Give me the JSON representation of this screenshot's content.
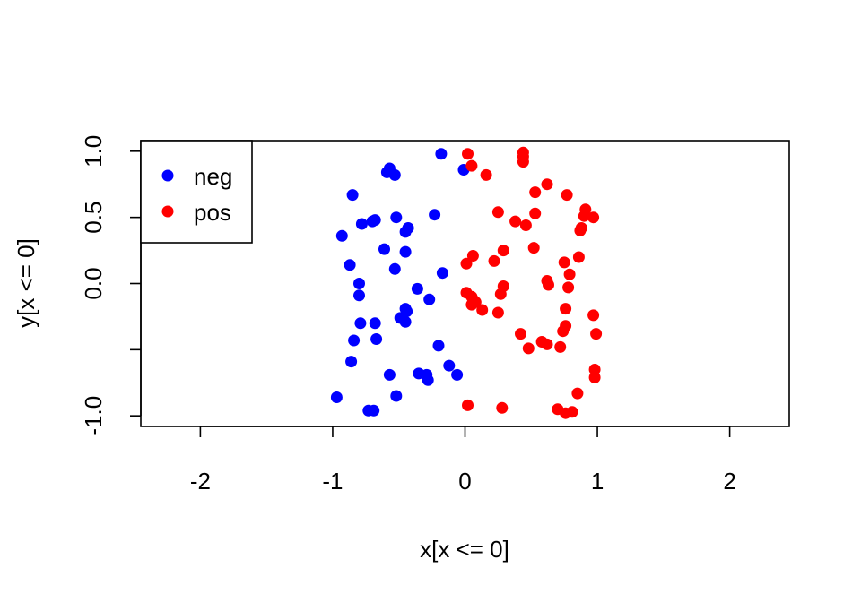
{
  "chart_data": {
    "type": "scatter",
    "xlabel": "x[x <= 0]",
    "ylabel": "y[x <= 0]",
    "xlim": [
      -2.45,
      2.45
    ],
    "ylim": [
      -1.08,
      1.08
    ],
    "x_ticks": [
      {
        "value": -2,
        "label": "-2"
      },
      {
        "value": -1,
        "label": "-1"
      },
      {
        "value": 0,
        "label": "0"
      },
      {
        "value": 1,
        "label": "1"
      },
      {
        "value": 2,
        "label": "2"
      }
    ],
    "y_ticks": [
      {
        "value": -1.0,
        "label": "-1.0"
      },
      {
        "value": -0.5,
        "label": ""
      },
      {
        "value": 0.0,
        "label": "0.0"
      },
      {
        "value": 0.5,
        "label": "0.5"
      },
      {
        "value": 1.0,
        "label": "1.0"
      }
    ],
    "legend": {
      "position": "top-left",
      "items": [
        {
          "label": "neg",
          "color": "#0000ff"
        },
        {
          "label": "pos",
          "color": "#ff0000"
        }
      ]
    },
    "series": [
      {
        "name": "neg",
        "color": "#0000ff",
        "points": [
          [
            -0.18,
            0.98
          ],
          [
            -0.57,
            0.87
          ],
          [
            -0.59,
            0.84
          ],
          [
            -0.53,
            0.82
          ],
          [
            -0.01,
            0.86
          ],
          [
            -0.85,
            0.67
          ],
          [
            -0.23,
            0.52
          ],
          [
            -0.52,
            0.5
          ],
          [
            -0.68,
            0.48
          ],
          [
            -0.7,
            0.47
          ],
          [
            -0.78,
            0.45
          ],
          [
            -0.43,
            0.42
          ],
          [
            -0.45,
            0.39
          ],
          [
            -0.93,
            0.36
          ],
          [
            -0.61,
            0.26
          ],
          [
            -0.45,
            0.24
          ],
          [
            -0.87,
            0.14
          ],
          [
            -0.53,
            0.11
          ],
          [
            -0.17,
            0.08
          ],
          [
            -0.8,
            0.0
          ],
          [
            -0.36,
            -0.04
          ],
          [
            -0.8,
            -0.09
          ],
          [
            -0.27,
            -0.12
          ],
          [
            -0.45,
            -0.19
          ],
          [
            -0.44,
            -0.21
          ],
          [
            -0.49,
            -0.26
          ],
          [
            -0.45,
            -0.29
          ],
          [
            -0.79,
            -0.3
          ],
          [
            -0.68,
            -0.3
          ],
          [
            -0.84,
            -0.43
          ],
          [
            -0.67,
            -0.42
          ],
          [
            -0.2,
            -0.47
          ],
          [
            -0.86,
            -0.59
          ],
          [
            -0.12,
            -0.62
          ],
          [
            -0.57,
            -0.69
          ],
          [
            -0.35,
            -0.68
          ],
          [
            -0.29,
            -0.69
          ],
          [
            -0.06,
            -0.69
          ],
          [
            -0.28,
            -0.73
          ],
          [
            -0.97,
            -0.86
          ],
          [
            -0.52,
            -0.85
          ],
          [
            -0.73,
            -0.96
          ],
          [
            -0.69,
            -0.96
          ]
        ]
      },
      {
        "name": "pos",
        "color": "#ff0000",
        "points": [
          [
            0.02,
            0.98
          ],
          [
            0.44,
            0.99
          ],
          [
            0.44,
            0.96
          ],
          [
            0.44,
            0.92
          ],
          [
            0.05,
            0.89
          ],
          [
            0.16,
            0.82
          ],
          [
            0.62,
            0.75
          ],
          [
            0.53,
            0.69
          ],
          [
            0.77,
            0.67
          ],
          [
            0.91,
            0.56
          ],
          [
            0.25,
            0.54
          ],
          [
            0.53,
            0.53
          ],
          [
            0.9,
            0.51
          ],
          [
            0.97,
            0.5
          ],
          [
            0.38,
            0.47
          ],
          [
            0.46,
            0.44
          ],
          [
            0.88,
            0.42
          ],
          [
            0.87,
            0.4
          ],
          [
            0.52,
            0.27
          ],
          [
            0.29,
            0.25
          ],
          [
            0.86,
            0.2
          ],
          [
            0.06,
            0.21
          ],
          [
            0.22,
            0.17
          ],
          [
            0.01,
            0.15
          ],
          [
            0.75,
            0.16
          ],
          [
            0.79,
            0.07
          ],
          [
            0.62,
            0.02
          ],
          [
            0.63,
            -0.01
          ],
          [
            0.29,
            -0.02
          ],
          [
            0.78,
            -0.03
          ],
          [
            0.01,
            -0.07
          ],
          [
            0.27,
            -0.08
          ],
          [
            0.05,
            -0.1
          ],
          [
            0.07,
            -0.13
          ],
          [
            0.08,
            -0.14
          ],
          [
            0.05,
            -0.16
          ],
          [
            0.13,
            -0.2
          ],
          [
            0.76,
            -0.19
          ],
          [
            0.25,
            -0.22
          ],
          [
            0.97,
            -0.24
          ],
          [
            0.76,
            -0.32
          ],
          [
            0.99,
            -0.38
          ],
          [
            0.42,
            -0.38
          ],
          [
            0.74,
            -0.36
          ],
          [
            0.58,
            -0.44
          ],
          [
            0.62,
            -0.46
          ],
          [
            0.48,
            -0.49
          ],
          [
            0.72,
            -0.48
          ],
          [
            0.98,
            -0.65
          ],
          [
            0.98,
            -0.71
          ],
          [
            0.02,
            -0.92
          ],
          [
            0.28,
            -0.94
          ],
          [
            0.85,
            -0.83
          ],
          [
            0.7,
            -0.95
          ],
          [
            0.76,
            -0.98
          ],
          [
            0.81,
            -0.97
          ]
        ]
      }
    ]
  }
}
